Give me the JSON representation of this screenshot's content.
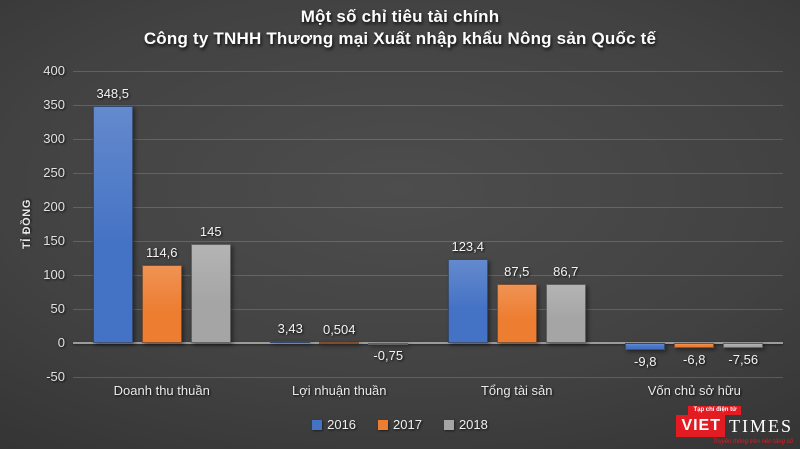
{
  "header": {
    "title_line1": "Một số chỉ tiêu tài chính",
    "title_line2": "Công ty TNHH Thương mại Xuất nhập khẩu Nông sản Quốc tế"
  },
  "chart_data": {
    "type": "bar",
    "title": "Một số chỉ tiêu tài chính - Công ty TNHH Thương mại Xuất nhập khẩu Nông sản Quốc tế",
    "xlabel": "",
    "ylabel": "TỈ ĐỒNG",
    "ylim": [
      -50,
      400
    ],
    "ytick_step": 50,
    "grid": true,
    "legend_position": "bottom",
    "categories": [
      "Doanh thu thuần",
      "Lợi nhuận thuần",
      "Tổng tài sản",
      "Vốn chủ sở hữu"
    ],
    "series": [
      {
        "name": "2016",
        "color": "#4472c4",
        "values": [
          348.5,
          3.43,
          123.4,
          -9.8
        ],
        "value_labels": [
          "348,5",
          "3,43",
          "123,4",
          "-9,8"
        ]
      },
      {
        "name": "2017",
        "color": "#ed7d31",
        "values": [
          114.6,
          0.504,
          87.5,
          -6.8
        ],
        "value_labels": [
          "114,6",
          "0,504",
          "87,5",
          "-6,8"
        ]
      },
      {
        "name": "2018",
        "color": "#a5a5a5",
        "values": [
          145,
          -0.75,
          86.7,
          -7.56
        ],
        "value_labels": [
          "145",
          "-0,75",
          "86,7",
          "-7,56"
        ]
      }
    ]
  },
  "logo": {
    "tagline_top": "Tạp chí điện tử",
    "name_left": "VIET",
    "name_right": "TIMES",
    "tagline_bottom": "Truyền thông trên nền tảng số",
    "brand_red": "#e31b23"
  }
}
